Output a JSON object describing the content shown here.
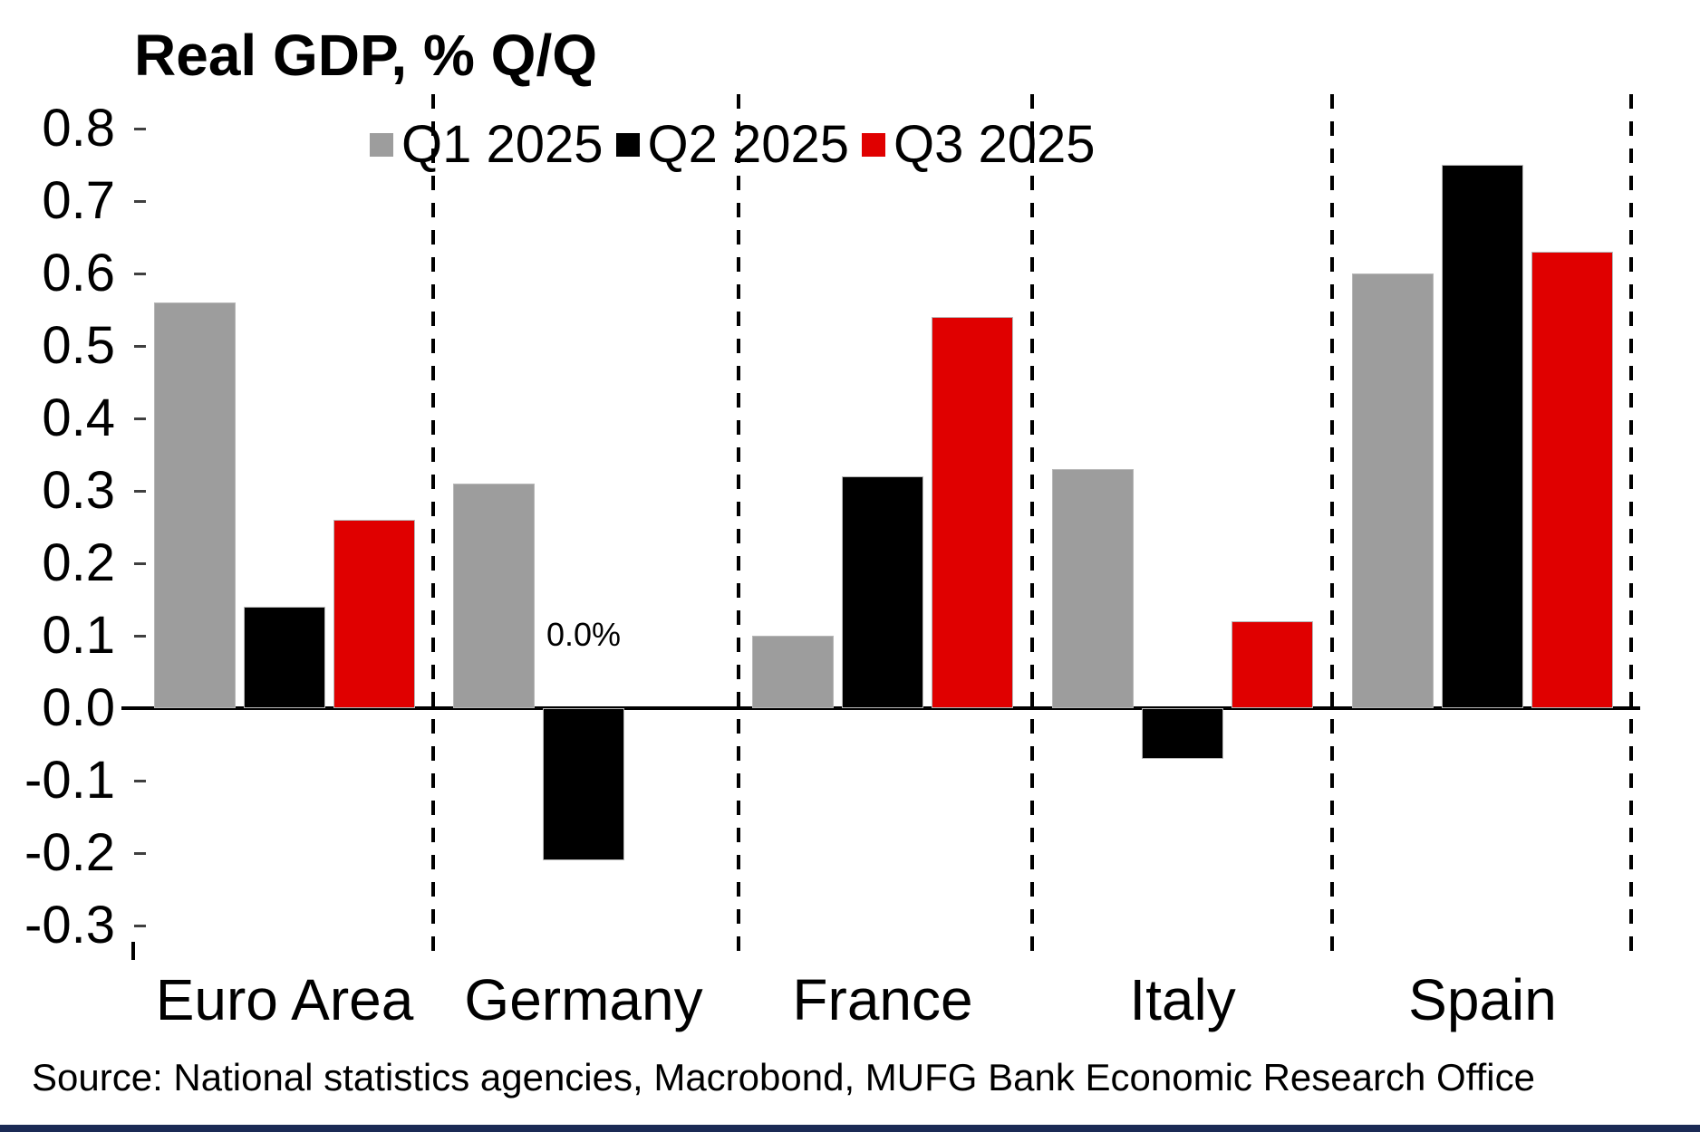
{
  "title": "Real GDP, % Q/Q",
  "source": "Source: National statistics agencies, Macrobond, MUFG Bank Economic Research Office",
  "colors": {
    "q1": "#9d9d9d",
    "q2": "#000000",
    "q3": "#e00000",
    "axis": "#000000",
    "bottom_rule": "#1b2a55"
  },
  "chart_data": {
    "type": "bar",
    "title": "Real GDP, % Q/Q",
    "categories": [
      "Euro Area",
      "Germany",
      "France",
      "Italy",
      "Spain"
    ],
    "series": [
      {
        "name": "Q1 2025",
        "color": "#9d9d9d",
        "values": [
          0.56,
          0.31,
          0.1,
          0.33,
          0.6
        ]
      },
      {
        "name": "Q2 2025",
        "color": "#000000",
        "values": [
          0.14,
          -0.21,
          0.32,
          -0.07,
          0.75
        ]
      },
      {
        "name": "Q3 2025",
        "color": "#e00000",
        "values": [
          0.26,
          null,
          0.54,
          0.12,
          0.63
        ]
      }
    ],
    "annotations": [
      {
        "text": "0.0%",
        "category": "Germany",
        "series": "Q3 2025",
        "value": 0.0
      }
    ],
    "ylabel": "",
    "xlabel": "",
    "ylim": [
      -0.3,
      0.87
    ],
    "yticks": [
      0.8,
      0.7,
      0.6,
      0.5,
      0.4,
      0.3,
      0.2,
      0.1,
      0.0,
      -0.1,
      -0.2,
      -0.3
    ],
    "grid": false,
    "legend_position": "top"
  }
}
